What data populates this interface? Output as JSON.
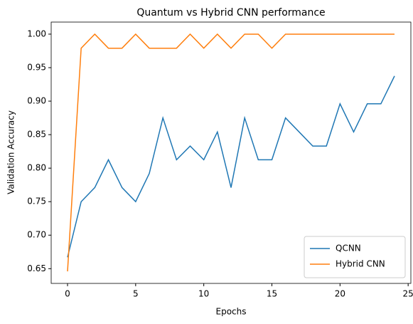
{
  "chart_data": {
    "type": "line",
    "title": "Quantum vs Hybrid CNN performance",
    "x_label": "Epochs",
    "y_label": "Validation Accuracy",
    "x": [
      0,
      1,
      2,
      3,
      4,
      5,
      6,
      7,
      8,
      9,
      10,
      11,
      12,
      13,
      14,
      15,
      16,
      17,
      18,
      19,
      20,
      21,
      22,
      23,
      24
    ],
    "series": [
      {
        "name": "QCNN",
        "color": "#1f77b4",
        "values": [
          0.667,
          0.75,
          0.771,
          0.8125,
          0.771,
          0.75,
          0.792,
          0.875,
          0.8125,
          0.833,
          0.8125,
          0.854,
          0.771,
          0.875,
          0.8125,
          0.8125,
          0.875,
          0.854,
          0.833,
          0.833,
          0.896,
          0.854,
          0.896,
          0.896,
          0.9375
        ]
      },
      {
        "name": "Hybrid CNN",
        "color": "#ff7f0e",
        "values": [
          0.646,
          0.979,
          1.0,
          0.979,
          0.979,
          1.0,
          0.979,
          0.979,
          0.979,
          1.0,
          0.979,
          1.0,
          0.979,
          1.0,
          1.0,
          0.979,
          1.0,
          1.0,
          1.0,
          1.0,
          1.0,
          1.0,
          1.0,
          1.0,
          1.0
        ]
      }
    ],
    "xlim": [
      -1.2,
      25.2
    ],
    "xticks": [
      0,
      5,
      10,
      15,
      20,
      25
    ],
    "ylim": [
      0.628,
      1.018
    ],
    "yticks": [
      0.65,
      {
        "value": 0.7,
        "label": "0.70"
      },
      0.75,
      {
        "value": 0.8,
        "label": "0.80"
      },
      0.85,
      {
        "value": 0.9,
        "label": "0.90"
      },
      0.95,
      {
        "value": 1.0,
        "label": "1.00"
      }
    ],
    "legend": "lower right",
    "grid": false
  }
}
